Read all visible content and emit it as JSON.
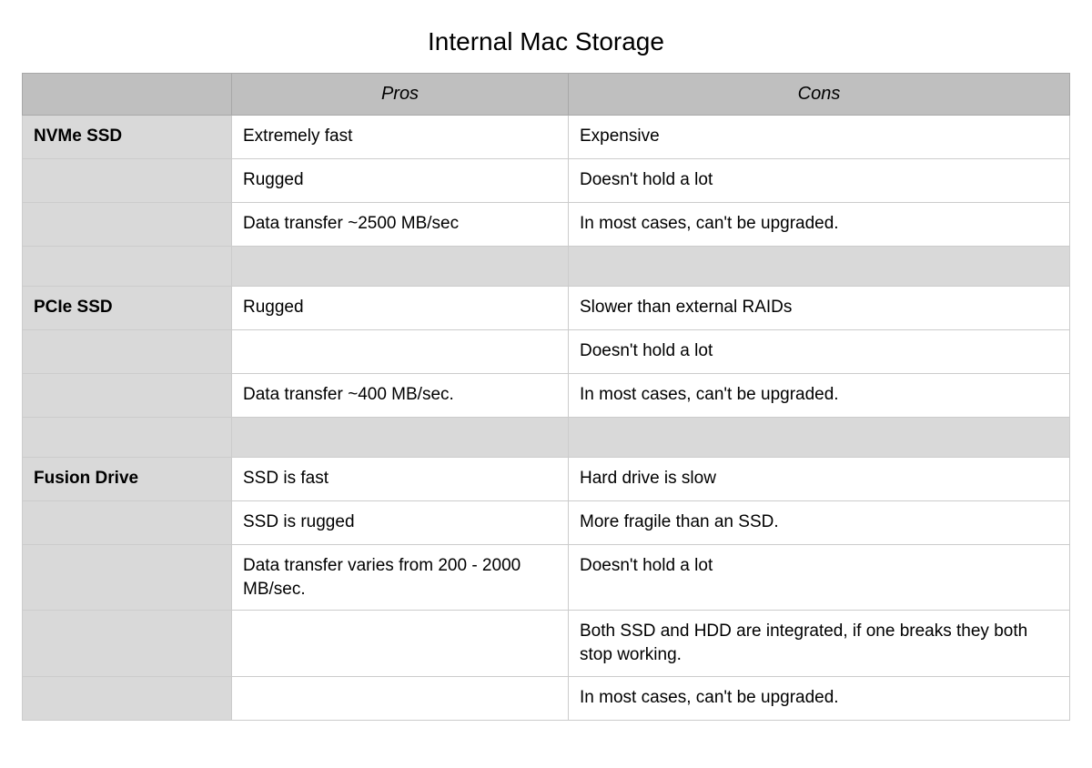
{
  "title": "Internal Mac Storage",
  "columns": {
    "pros": "Pros",
    "cons": "Cons"
  },
  "drives": [
    {
      "name": "NVMe SSD",
      "rows": [
        {
          "pro": "Extremely fast",
          "con": "Expensive"
        },
        {
          "pro": "Rugged",
          "con": "Doesn't hold a lot"
        },
        {
          "pro": "Data transfer ~2500 MB/sec",
          "con": "In most cases, can't be upgraded."
        }
      ]
    },
    {
      "name": "PCIe SSD",
      "rows": [
        {
          "pro": "Rugged",
          "con": "Slower than external RAIDs"
        },
        {
          "pro": "",
          "con": "Doesn't hold a lot"
        },
        {
          "pro": "Data transfer ~400 MB/sec.",
          "con": "In most cases, can't be upgraded."
        }
      ]
    },
    {
      "name": "Fusion Drive",
      "rows": [
        {
          "pro": "SSD is fast",
          "con": "Hard drive is slow"
        },
        {
          "pro": "SSD is rugged",
          "con": "More fragile than an SSD."
        },
        {
          "pro": "Data transfer varies from 200 - 2000 MB/sec.",
          "con": "Doesn't hold a lot"
        },
        {
          "pro": "",
          "con": "Both SSD and HDD are integrated, if one breaks they both stop working."
        },
        {
          "pro": "",
          "con": "In most cases, can't be upgraded."
        }
      ]
    }
  ],
  "style": {
    "header_bg": "#bfbfbf",
    "label_bg": "#d9d9d9",
    "cell_bg": "#ffffff",
    "border_color": "#cccccc",
    "title_fontsize": 28,
    "header_fontsize": 20,
    "cell_fontsize": 19
  }
}
